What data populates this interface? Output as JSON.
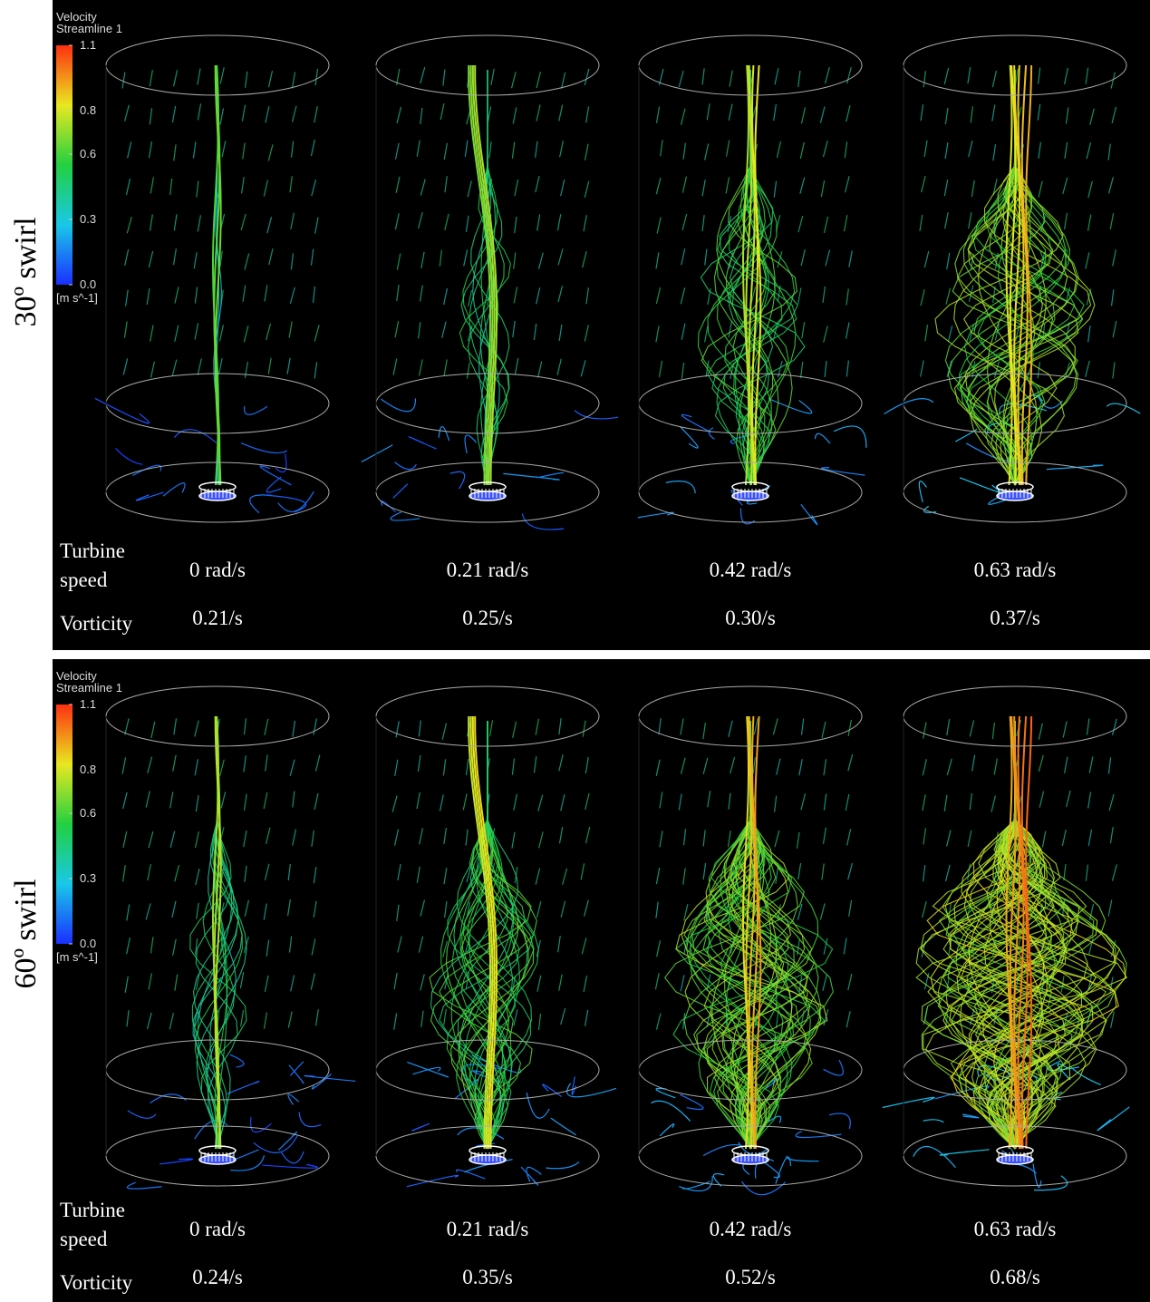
{
  "panels": [
    {
      "row_label": "30º swirl",
      "colorbar": {
        "title": "Velocity",
        "subtitle": "Streamline 1",
        "ticks": [
          1.1,
          0.8,
          0.6,
          0.3,
          {
            "value": 0,
            "label": "0.0"
          }
        ],
        "lim": [
          0,
          1.1
        ],
        "unit": "[m s^-1]"
      },
      "speed_label": "Turbine speed",
      "vorticity_label": "Vorticity",
      "cases": [
        {
          "speed": "0 rad/s",
          "vorticity": "0.21/s"
        },
        {
          "speed": "0.21 rad/s",
          "vorticity": "0.25/s"
        },
        {
          "speed": "0.42 rad/s",
          "vorticity": "0.30/s"
        },
        {
          "speed": "0.63 rad/s",
          "vorticity": "0.37/s"
        }
      ]
    },
    {
      "row_label": "60º swirl",
      "colorbar": {
        "title": "Velocity",
        "subtitle": "Streamline 1",
        "ticks": [
          1.1,
          0.8,
          0.6,
          0.3,
          {
            "value": 0,
            "label": "0.0"
          }
        ],
        "lim": [
          0,
          1.1
        ],
        "unit": "[m s^-1]"
      },
      "speed_label": "Turbine speed",
      "vorticity_label": "Vorticity",
      "cases": [
        {
          "speed": "0 rad/s",
          "vorticity": "0.24/s"
        },
        {
          "speed": "0.21 rad/s",
          "vorticity": "0.35/s"
        },
        {
          "speed": "0.42 rad/s",
          "vorticity": "0.52/s"
        },
        {
          "speed": "0.63 rad/s",
          "vorticity": "0.68/s"
        }
      ]
    }
  ]
}
